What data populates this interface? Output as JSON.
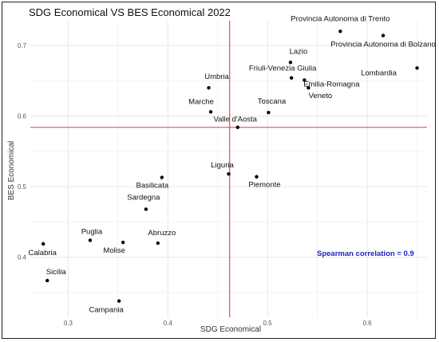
{
  "chart_data": {
    "type": "scatter",
    "title": "SDG Economical VS BES Economical 2022",
    "xlabel": "SDG Economical",
    "ylabel": "BES Economical",
    "xlim": [
      0.262,
      0.66
    ],
    "ylim": [
      0.315,
      0.735
    ],
    "xticks": [
      0.3,
      0.4,
      0.5,
      0.6
    ],
    "yticks": [
      0.4,
      0.5,
      0.6,
      0.7
    ],
    "grid": true,
    "reference_lines": {
      "x": 0.462,
      "y": 0.584,
      "color": "#e0403a"
    },
    "annotation": "Spearman correlation = 0.9",
    "points": [
      {
        "label": "Provincia Autonoma di Trento",
        "x": 0.573,
        "y": 0.72
      },
      {
        "label": "Provincia Autonoma di Bolzano",
        "x": 0.616,
        "y": 0.714
      },
      {
        "label": "Lombardia",
        "x": 0.65,
        "y": 0.668
      },
      {
        "label": "Lazio",
        "x": 0.523,
        "y": 0.676
      },
      {
        "label": "Friuli-Venezia Giulia",
        "x": 0.524,
        "y": 0.654
      },
      {
        "label": "Emilia-Romagna",
        "x": 0.537,
        "y": 0.651
      },
      {
        "label": "Veneto",
        "x": 0.541,
        "y": 0.64
      },
      {
        "label": "Umbria",
        "x": 0.441,
        "y": 0.64
      },
      {
        "label": "Marche",
        "x": 0.443,
        "y": 0.606
      },
      {
        "label": "Toscana",
        "x": 0.501,
        "y": 0.605
      },
      {
        "label": "Valle d'Aosta",
        "x": 0.47,
        "y": 0.584
      },
      {
        "label": "Liguria",
        "x": 0.461,
        "y": 0.518
      },
      {
        "label": "Piemonte",
        "x": 0.489,
        "y": 0.514
      },
      {
        "label": "Basilicata",
        "x": 0.394,
        "y": 0.513
      },
      {
        "label": "Sardegna",
        "x": 0.378,
        "y": 0.468
      },
      {
        "label": "Puglia",
        "x": 0.322,
        "y": 0.424
      },
      {
        "label": "Molise",
        "x": 0.355,
        "y": 0.421
      },
      {
        "label": "Abruzzo",
        "x": 0.39,
        "y": 0.42
      },
      {
        "label": "Calabria",
        "x": 0.275,
        "y": 0.419
      },
      {
        "label": "Sicilia",
        "x": 0.279,
        "y": 0.367
      },
      {
        "label": "Campania",
        "x": 0.351,
        "y": 0.338
      }
    ]
  }
}
